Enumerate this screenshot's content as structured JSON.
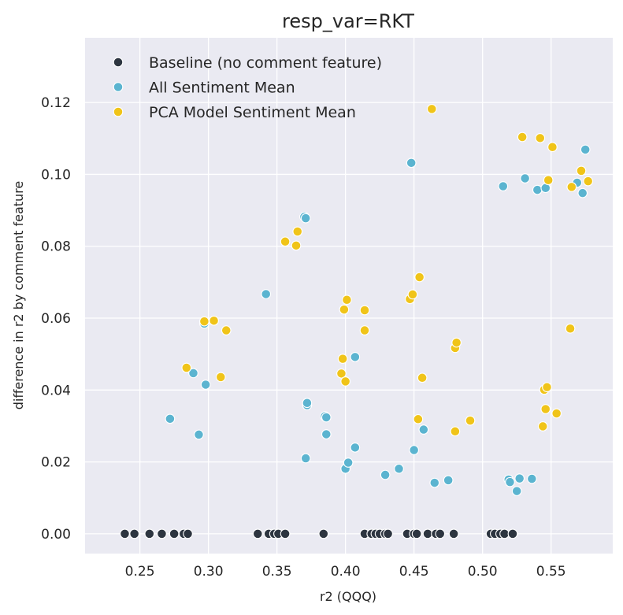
{
  "chart_data": {
    "type": "scatter",
    "title": "resp_var=RKT",
    "xlabel": "r2 (QQQ)",
    "ylabel": "difference in r2 by comment feature",
    "xlim": [
      0.21,
      0.595
    ],
    "ylim": [
      -0.0055,
      0.138
    ],
    "xticks": [
      0.25,
      0.3,
      0.35,
      0.4,
      0.45,
      0.5,
      0.55
    ],
    "xtick_labels": [
      "0.25",
      "0.30",
      "0.35",
      "0.40",
      "0.45",
      "0.50",
      "0.55"
    ],
    "yticks": [
      0.0,
      0.02,
      0.04,
      0.06,
      0.08,
      0.1,
      0.12
    ],
    "ytick_labels": [
      "0.00",
      "0.02",
      "0.04",
      "0.06",
      "0.08",
      "0.10",
      "0.12"
    ],
    "grid": true,
    "background": "#EAEAF2",
    "legend_position": "top-left",
    "series": [
      {
        "name": "Baseline (no comment feature)",
        "color": "#2D3540",
        "x": [
          0.239,
          0.246,
          0.257,
          0.266,
          0.275,
          0.282,
          0.285,
          0.336,
          0.344,
          0.348,
          0.351,
          0.356,
          0.384,
          0.414,
          0.419,
          0.422,
          0.425,
          0.429,
          0.431,
          0.445,
          0.45,
          0.452,
          0.46,
          0.466,
          0.469,
          0.479,
          0.506,
          0.509,
          0.513,
          0.516,
          0.522
        ],
        "y": [
          0,
          0,
          0,
          0,
          0,
          0,
          0,
          0,
          0,
          0,
          0,
          0,
          0,
          0,
          0,
          0,
          0,
          0,
          0,
          0,
          0,
          0,
          0,
          0,
          0,
          0,
          0,
          0,
          0,
          0,
          0
        ]
      },
      {
        "name": "All Sentiment Mean",
        "color": "#5BB4D0",
        "x": [
          0.272,
          0.289,
          0.293,
          0.297,
          0.298,
          0.342,
          0.37,
          0.371,
          0.372,
          0.372,
          0.371,
          0.385,
          0.386,
          0.386,
          0.4,
          0.402,
          0.407,
          0.407,
          0.429,
          0.439,
          0.448,
          0.45,
          0.457,
          0.465,
          0.475,
          0.515,
          0.519,
          0.52,
          0.525,
          0.527,
          0.531,
          0.536,
          0.54,
          0.546,
          0.569,
          0.573,
          0.575
        ],
        "y": [
          0.032,
          0.0447,
          0.0276,
          0.0585,
          0.0415,
          0.0667,
          0.0882,
          0.0878,
          0.0358,
          0.0364,
          0.021,
          0.0327,
          0.0324,
          0.0277,
          0.0181,
          0.0198,
          0.0492,
          0.024,
          0.0164,
          0.0181,
          0.1032,
          0.0233,
          0.029,
          0.0142,
          0.0149,
          0.0967,
          0.0151,
          0.0144,
          0.0119,
          0.0154,
          0.0989,
          0.0153,
          0.0957,
          0.0962,
          0.0977,
          0.0948,
          0.1069
        ]
      },
      {
        "name": "PCA Model Sentiment Mean",
        "color": "#F0C419",
        "x": [
          0.284,
          0.297,
          0.304,
          0.309,
          0.313,
          0.356,
          0.364,
          0.365,
          0.397,
          0.398,
          0.399,
          0.4,
          0.401,
          0.414,
          0.414,
          0.447,
          0.449,
          0.453,
          0.454,
          0.456,
          0.463,
          0.48,
          0.48,
          0.481,
          0.491,
          0.529,
          0.542,
          0.544,
          0.545,
          0.546,
          0.547,
          0.548,
          0.551,
          0.554,
          0.564,
          0.565,
          0.572,
          0.577
        ],
        "y": [
          0.0462,
          0.0591,
          0.0593,
          0.0436,
          0.0566,
          0.0813,
          0.0802,
          0.0841,
          0.0446,
          0.0487,
          0.0624,
          0.0424,
          0.0651,
          0.0622,
          0.0566,
          0.0653,
          0.0666,
          0.0319,
          0.0714,
          0.0434,
          0.1182,
          0.0285,
          0.0517,
          0.0532,
          0.0315,
          0.1104,
          0.1101,
          0.0299,
          0.0401,
          0.0347,
          0.0408,
          0.0984,
          0.1076,
          0.0335,
          0.0571,
          0.0965,
          0.101,
          0.0981
        ]
      }
    ]
  }
}
